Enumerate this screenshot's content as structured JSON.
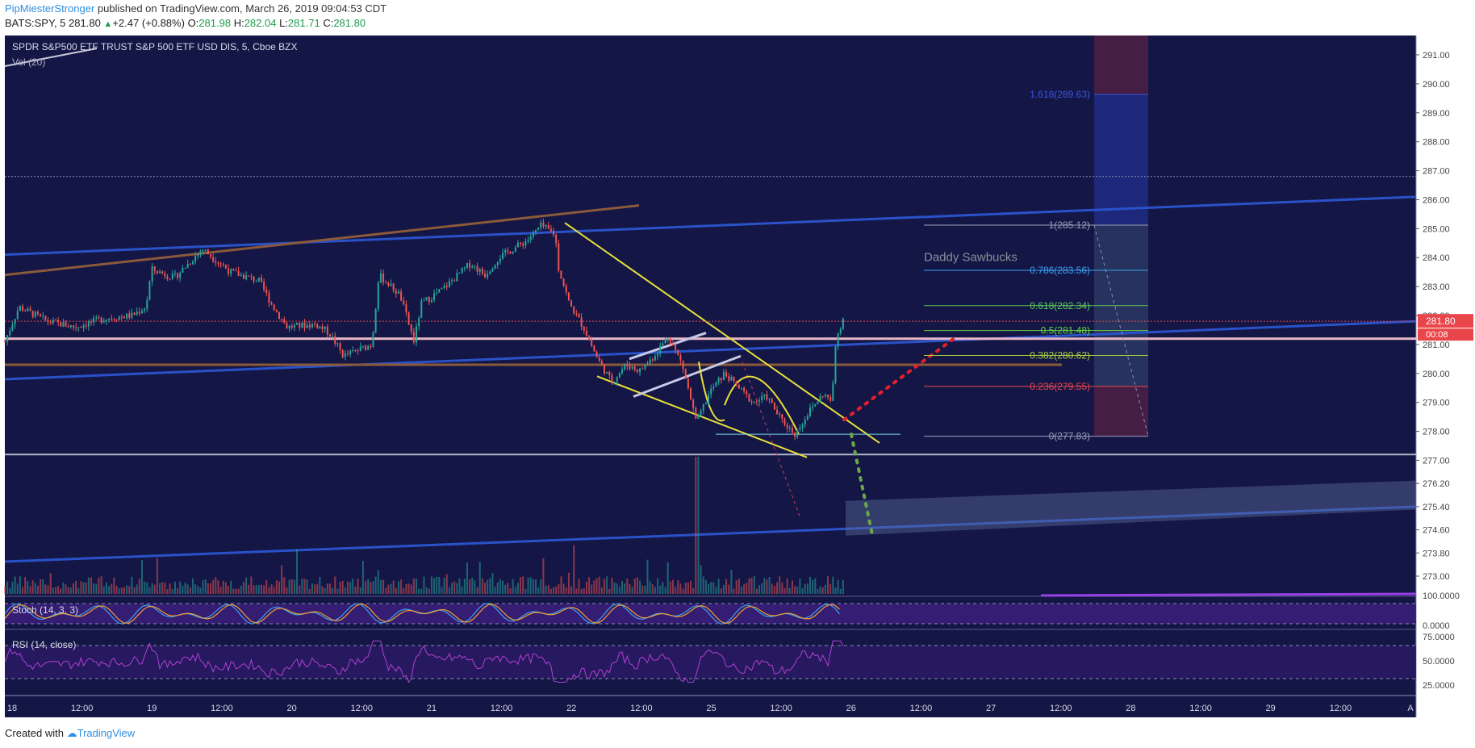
{
  "header": {
    "author": "PipMiesterStronger",
    "published": "published on TradingView.com, March 26, 2019 09:04:53 CDT"
  },
  "quote": {
    "symbol": "BATS:SPY, 5",
    "last": "281.80",
    "change": "+2.47 (+0.88%)",
    "open_label": "O:",
    "open": "281.98",
    "high_label": "H:",
    "high": "282.04",
    "low_label": "L:",
    "low": "281.71",
    "close_label": "C:",
    "close": "281.80"
  },
  "footer": {
    "created_with": "Created with",
    "brand": "TradingView"
  },
  "colors": {
    "background": "#141646",
    "up": "#26a69a",
    "down": "#ef5350",
    "fib_box": "#2b2f6b",
    "stoch_band": "#3a1f7a",
    "rsi_band": "#2a1a64"
  },
  "chart_data": [
    {
      "type": "candlestick",
      "title": "SPDR S&P500 ETF TRUST S&P 500 ETF USD DIS, 5, Cboe BZX",
      "volume_label": "Vol (20)",
      "x_ticks": [
        "18",
        "12:00",
        "19",
        "12:00",
        "20",
        "12:00",
        "21",
        "12:00",
        "22",
        "12:00",
        "25",
        "12:00",
        "26",
        "12:00",
        "27",
        "12:00",
        "28",
        "12:00",
        "29",
        "12:00",
        "A"
      ],
      "y_ticks": [
        291.0,
        290.0,
        289.0,
        288.0,
        287.0,
        286.0,
        285.0,
        284.0,
        283.0,
        282.0,
        281.0,
        280.0,
        279.0,
        278.0,
        277.0,
        276.2,
        275.4,
        274.6,
        273.8,
        273.0
      ],
      "price_pct_path": [
        [
          0,
          281.1
        ],
        [
          1,
          282.3
        ],
        [
          3,
          281.8
        ],
        [
          5,
          281.6
        ],
        [
          7,
          281.9
        ],
        [
          9,
          282.0
        ],
        [
          10,
          282.3
        ],
        [
          10.4,
          283.6
        ],
        [
          12,
          283.3
        ],
        [
          14,
          284.3
        ],
        [
          16,
          283.5
        ],
        [
          18,
          283.2
        ],
        [
          19,
          282.3
        ],
        [
          20,
          281.6
        ],
        [
          22,
          281.7
        ],
        [
          23,
          281.4
        ],
        [
          24,
          280.6
        ],
        [
          25,
          280.8
        ],
        [
          26,
          281.0
        ],
        [
          26.5,
          283.4
        ],
        [
          28,
          282.7
        ],
        [
          29,
          281.1
        ],
        [
          29.5,
          282.4
        ],
        [
          31,
          282.9
        ],
        [
          33,
          283.8
        ],
        [
          34,
          283.4
        ],
        [
          35,
          284.0
        ],
        [
          37,
          284.6
        ],
        [
          38,
          285.1
        ],
        [
          39,
          284.8
        ],
        [
          39.2,
          283.7
        ],
        [
          40,
          282.4
        ],
        [
          41,
          281.6
        ],
        [
          42,
          280.5
        ],
        [
          43,
          279.7
        ],
        [
          44,
          280.3
        ],
        [
          45,
          280.1
        ],
        [
          46,
          280.6
        ],
        [
          47,
          281.3
        ],
        [
          48,
          280.3
        ],
        [
          49,
          278.3
        ],
        [
          50,
          279.4
        ],
        [
          51,
          280.0
        ],
        [
          52,
          279.5
        ],
        [
          53,
          279.0
        ],
        [
          54,
          279.2
        ],
        [
          55,
          278.4
        ],
        [
          56,
          277.9
        ],
        [
          57,
          278.7
        ],
        [
          58,
          279.3
        ],
        [
          58.6,
          279.0
        ],
        [
          58.9,
          281.2
        ],
        [
          59.4,
          281.9
        ]
      ],
      "fibonacci": [
        {
          "label": "1(285.12)",
          "level": 285.12,
          "color": "#9aa0b8"
        },
        {
          "label": "0.786(283.56)",
          "level": 283.56,
          "color": "#3aa0f0"
        },
        {
          "label": "0.618(282.34)",
          "level": 282.34,
          "color": "#5cc85c"
        },
        {
          "label": "0.5(281.48)",
          "level": 281.48,
          "color": "#63d443"
        },
        {
          "label": "0.382(280.62)",
          "level": 280.62,
          "color": "#a8d040"
        },
        {
          "label": "0.236(279.55)",
          "level": 279.55,
          "color": "#e8464a"
        },
        {
          "label": "0(277.83)",
          "level": 277.83,
          "color": "#9aa0b8"
        },
        {
          "label": "1.618(289.63)",
          "level": 289.63,
          "color": "#3a56e0"
        }
      ],
      "annotation": "Daddy Sawbucks",
      "last_price_label": "281.80",
      "countdown_label": "00:08"
    },
    {
      "type": "line",
      "title": "Stoch (14, 3, 3)",
      "y_ticks": [
        "100.0000",
        "0.0000"
      ]
    },
    {
      "type": "line",
      "title": "RSI (14, close)",
      "y_ticks": [
        "75.0000",
        "50.0000",
        "25.0000"
      ]
    }
  ]
}
